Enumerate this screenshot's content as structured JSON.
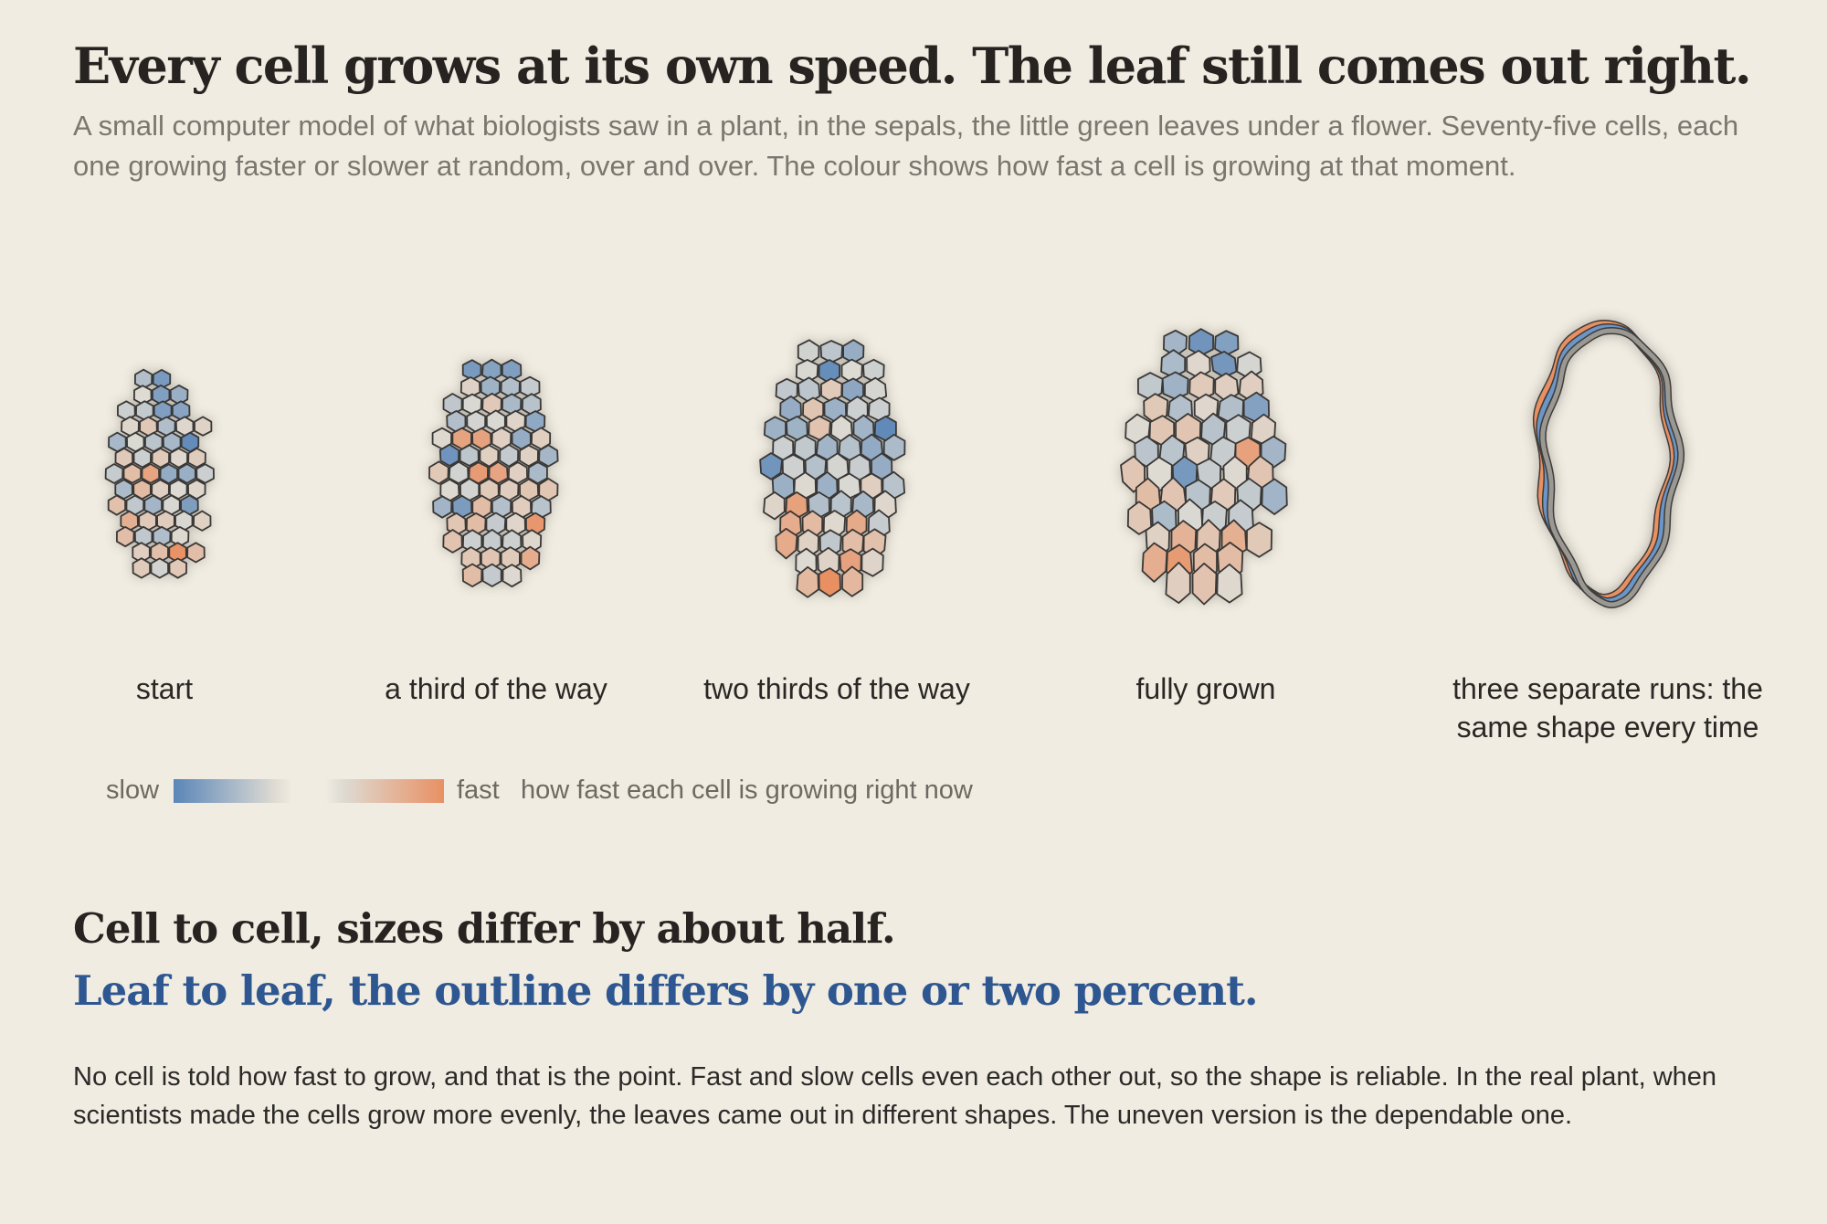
{
  "title": "Every cell grows at its own speed. The leaf still comes out right.",
  "subtitle": "A small computer model of what biologists saw in a plant, in the sepals, the little green leaves under a flower. Seventy-five cells, each one growing faster or slower at random, over and over. The colour shows how fast a cell is growing at that moment.",
  "panels": [
    {
      "label": "start"
    },
    {
      "label": "a third of the way"
    },
    {
      "label": "two thirds of the way"
    },
    {
      "label": "fully grown"
    },
    {
      "label": "three separate runs: the same shape every time"
    }
  ],
  "legend": {
    "slow_label": "slow",
    "fast_label": "fast",
    "caption": "how fast each cell is growing right now"
  },
  "headline_1": "Cell to cell, sizes differ by about half.",
  "headline_2": "Leaf to leaf, the outline differs by one or two percent.",
  "body": "No cell is told how fast to grow, and that is the point. Fast and slow cells even each other out, so the shape is reliable. In the real plant, when scientists made the cells grow more evenly, the leaves came out in different shapes. The uneven version is the dependable one.",
  "colors": {
    "background": "#f0ece1",
    "slow": "#5a86b8",
    "neutral": "#dedbd3",
    "fast": "#e99063",
    "outline": "#3a3836",
    "headline_accent": "#2e5791",
    "run_colors": [
      "#e99063",
      "#6b96c8",
      "#9a9892"
    ]
  }
}
